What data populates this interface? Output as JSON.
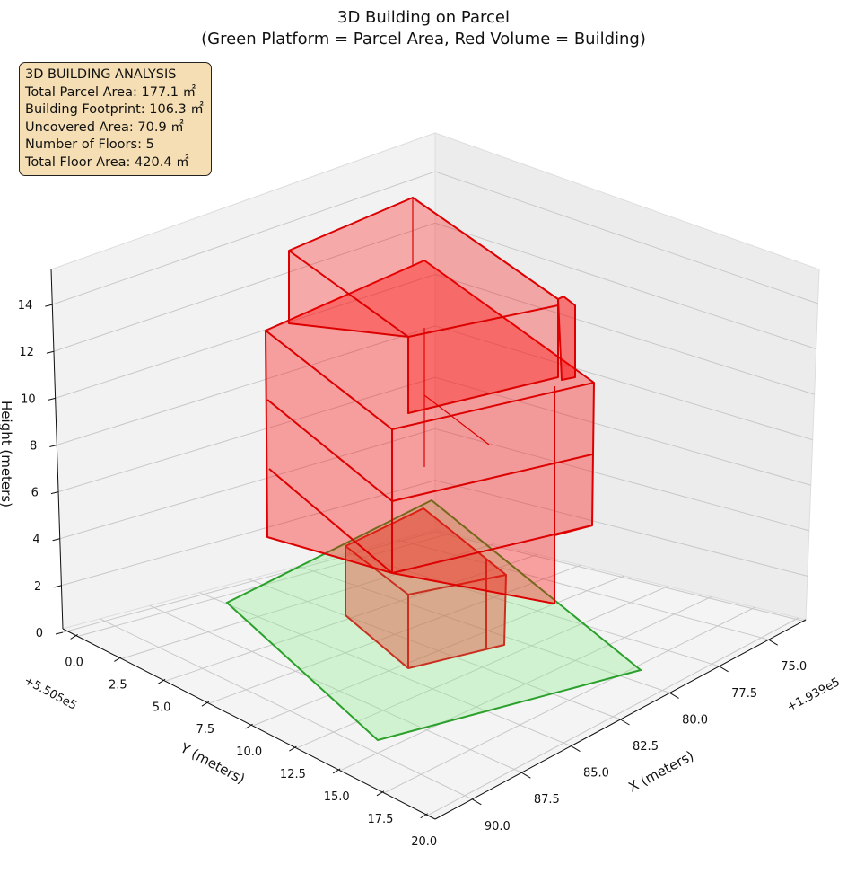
{
  "chart_data": {
    "type": "3d-polygons",
    "title": "3D Building on Parcel",
    "subtitle": "(Green Platform = Parcel Area, Red Volume = Building)",
    "xlabel": "X (meters)",
    "ylabel": "Y (meters)",
    "zlabel": "Height (meters)",
    "x_offset": "+1.939e5",
    "y_offset": "+5.505e5",
    "x_ticks": [
      "75.0",
      "77.5",
      "80.0",
      "82.5",
      "85.0",
      "87.5",
      "90.0"
    ],
    "y_ticks": [
      "0.0",
      "2.5",
      "5.0",
      "7.5",
      "10.0",
      "12.5",
      "15.0",
      "17.5",
      "20.0"
    ],
    "z_ticks": [
      "0",
      "2",
      "4",
      "6",
      "8",
      "10",
      "12",
      "14"
    ],
    "series": [
      {
        "name": "Parcel Area",
        "color": "#2ca02c",
        "fill": "#90ee90"
      },
      {
        "name": "Building",
        "color": "#dd0000",
        "fill": "#ff0000"
      }
    ]
  },
  "info": {
    "title": "3D BUILDING ANALYSIS",
    "lines": [
      "Total Parcel Area: 177.1 ㎡",
      "Building Footprint: 106.3 ㎡",
      "Uncovered Area: 70.9 ㎡",
      "Number of Floors: 5",
      "Total Floor Area: 420.4 ㎡"
    ]
  }
}
